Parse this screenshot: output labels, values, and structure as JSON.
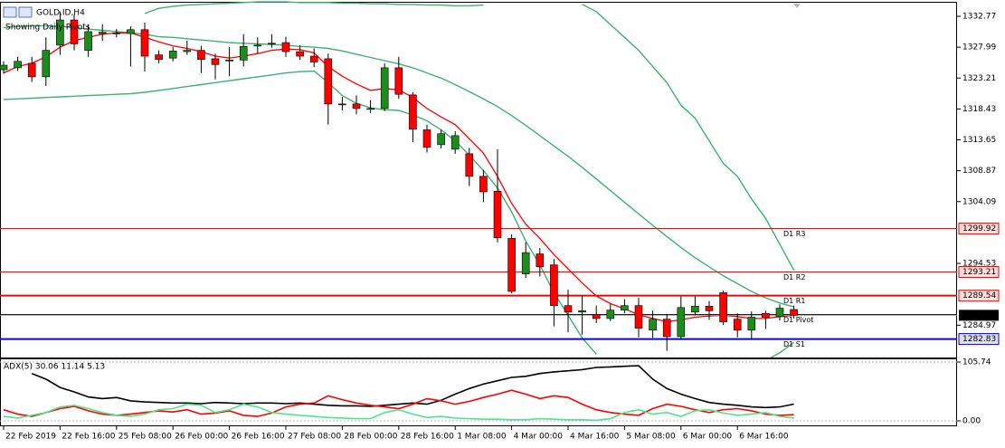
{
  "chart_data": [
    {
      "type": "candlestick",
      "title": "GOLD.ID,H4",
      "subtitle": "Showing Daily Pivots",
      "categories": [
        "22 Feb 2019",
        null,
        null,
        null,
        "22 Feb 16:00",
        null,
        null,
        null,
        "25 Feb 08:00",
        null,
        null,
        null,
        "26 Feb 00:00",
        null,
        null,
        null,
        "26 Feb 16:00",
        null,
        null,
        null,
        "27 Feb 08:00",
        null,
        null,
        null,
        "28 Feb 00:00",
        null,
        null,
        null,
        "28 Feb 16:00",
        null,
        null,
        null,
        "1 Mar 08:00",
        null,
        null,
        null,
        "4 Mar 00:00",
        null,
        null,
        null,
        "4 Mar 16:00",
        null,
        null,
        null,
        "5 Mar 08:00",
        null,
        null,
        null,
        "6 Mar 00:00",
        null,
        null,
        null,
        "6 Mar 16:00",
        null,
        null,
        null,
        null
      ],
      "open": [
        1324.5,
        1324.8,
        1325.5,
        1323.4,
        1328.3,
        1332.2,
        1327.5,
        1330.1,
        1330.2,
        1330.1,
        1330.7,
        1326.8,
        1326.3,
        1327.3,
        1327.5,
        1326.2,
        1325.9,
        1326.0,
        1328.2,
        1328.5,
        1328.7,
        1327.3,
        1326.6,
        1326.2,
        1319.2,
        1319.2,
        1318.4,
        1318.5,
        1324.8,
        1320.6,
        1315.2,
        1312.9,
        1312.2,
        1311.5,
        1308.0,
        1305.7,
        1298.4,
        1292.9,
        1296.0,
        1294.3,
        1288.0,
        1287.0,
        1286.6,
        1286.0,
        1287.3,
        1288.0,
        1284.2,
        1285.9,
        1283.2,
        1287.0,
        1287.9,
        1290.0,
        1285.9,
        1284.2,
        1286.8,
        1286.3,
        1287.4
      ],
      "high": [
        1325.8,
        1326.5,
        1326.5,
        1329.5,
        1333.5,
        1333.0,
        1331.5,
        1331.5,
        1330.8,
        1331.2,
        1331.8,
        1327.5,
        1328.0,
        1329.0,
        1328.2,
        1327.0,
        1328.0,
        1330.0,
        1329.5,
        1330.0,
        1329.6,
        1328.3,
        1327.8,
        1327.0,
        1320.3,
        1320.5,
        1319.8,
        1325.5,
        1326.5,
        1321.0,
        1316.0,
        1315.2,
        1315.0,
        1312.4,
        1309.0,
        1312.2,
        1299.0,
        1297.8,
        1296.9,
        1295.2,
        1290.5,
        1289.6,
        1288.0,
        1288.2,
        1289.0,
        1289.2,
        1287.2,
        1286.7,
        1289.4,
        1289.4,
        1288.7,
        1290.3,
        1286.8,
        1287.1,
        1287.2,
        1288.2,
        1288.0
      ],
      "low": [
        1323.9,
        1324.3,
        1322.6,
        1322.0,
        1326.8,
        1327.5,
        1326.5,
        1329.0,
        1329.5,
        1325.0,
        1324.2,
        1325.5,
        1325.8,
        1326.8,
        1324.0,
        1323.0,
        1323.5,
        1325.0,
        1327.0,
        1327.9,
        1326.5,
        1326.0,
        1324.9,
        1316.0,
        1318.2,
        1317.6,
        1317.8,
        1318.1,
        1320.0,
        1313.3,
        1311.7,
        1312.3,
        1311.5,
        1306.5,
        1304.0,
        1297.8,
        1289.9,
        1292.3,
        1292.5,
        1284.8,
        1283.9,
        1283.5,
        1285.3,
        1285.6,
        1286.8,
        1283.1,
        1283.0,
        1281.0,
        1282.7,
        1286.5,
        1285.8,
        1285.0,
        1283.1,
        1282.8,
        1284.4,
        1285.7,
        1286.0
      ],
      "close": [
        1325.2,
        1325.8,
        1323.4,
        1327.5,
        1332.2,
        1328.5,
        1330.4,
        1330.3,
        1330.1,
        1330.7,
        1326.6,
        1326.1,
        1327.4,
        1327.5,
        1326.1,
        1325.3,
        1326.0,
        1328.1,
        1328.3,
        1328.6,
        1327.3,
        1326.6,
        1325.7,
        1319.2,
        1319.1,
        1318.5,
        1318.5,
        1324.8,
        1320.7,
        1315.3,
        1312.5,
        1314.6,
        1314.3,
        1308.0,
        1305.6,
        1298.5,
        1290.2,
        1296.2,
        1294.0,
        1288.0,
        1287.0,
        1287.2,
        1286.0,
        1287.3,
        1288.0,
        1284.5,
        1285.9,
        1283.2,
        1287.7,
        1287.9,
        1287.2,
        1285.5,
        1284.2,
        1286.2,
        1286.2,
        1287.6,
        1286.5
      ],
      "up_color": "#1c8c1c",
      "down_color": "#ff0000",
      "overlays": [
        {
          "color": "#3cb371",
          "values": [
            null,
            null,
            null,
            null,
            null,
            null,
            null,
            null,
            null,
            null,
            1333.2,
            1334.0,
            1334.3,
            1334.5,
            1334.6,
            1334.7,
            1334.8,
            1334.9,
            1335.0,
            1335.0,
            1335.0,
            1334.9,
            1334.9,
            1334.9,
            1334.8,
            1334.8,
            1334.7,
            1334.7,
            1334.6,
            1334.6,
            1334.5,
            1334.5,
            1334.4,
            1334.4,
            1334.5,
            null,
            null,
            null,
            null,
            null,
            null,
            1334.6,
            1333.5,
            1331.5,
            1329.5,
            1327.5,
            1325.0,
            1322.5,
            1319.0,
            1317.0,
            1313.5,
            1310.0,
            1308.0,
            1304.5,
            1301.5,
            1297.5,
            1293.5
          ]
        },
        {
          "color": "#3cb371",
          "values": [
            1331.0,
            1331.2,
            1331.3,
            1331.3,
            1331.2,
            1331.0,
            1330.8,
            1330.6,
            1330.4,
            1330.2,
            1330.0,
            1329.6,
            1329.5,
            1329.3,
            1329.1,
            1328.9,
            1328.7,
            1328.6,
            1328.5,
            1328.4,
            1328.3,
            1328.1,
            1328.0,
            1327.8,
            1327.4,
            1326.9,
            1326.4,
            1325.9,
            1325.4,
            1324.8,
            1324.0,
            1323.2,
            1322.2,
            1321.1,
            1320.0,
            1318.8,
            1317.4,
            1315.9,
            1314.3,
            1312.7,
            1311.1,
            1309.4,
            1307.6,
            1305.8,
            1304.0,
            1302.2,
            1300.4,
            1298.7,
            1297.0,
            1295.4,
            1294.0,
            1292.6,
            1291.4,
            1290.2,
            1289.2,
            1288.4,
            1287.8
          ]
        },
        {
          "color": "#3cb371",
          "values": [
            1319.9,
            1320.0,
            1320.1,
            1320.2,
            1320.3,
            1320.4,
            1320.5,
            1320.6,
            1320.7,
            1320.8,
            1321.0,
            1321.3,
            1321.6,
            1321.9,
            1322.2,
            1322.5,
            1322.8,
            1323.1,
            1323.4,
            1323.7,
            1324.0,
            1324.2,
            1324.3,
            1322.5,
            1320.5,
            1319.3,
            1318.6,
            1318.3,
            1318.2,
            1317.5,
            1316.6,
            1315.2,
            1313.5,
            1311.3,
            1308.9,
            1306.2,
            1302.5,
            1298.0,
            1294.3,
            1290.0,
            1286.5,
            1283.0,
            1280.5,
            null,
            null,
            null,
            null,
            null,
            null,
            null,
            null,
            null,
            null,
            null,
            1279.5,
            1280.7,
            1282.3
          ]
        },
        {
          "color": "#ff0000",
          "values": [
            1324.0,
            1325.0,
            1325.5,
            1326.5,
            1328.0,
            1329.0,
            1329.5,
            1330.0,
            1330.2,
            1330.2,
            1329.5,
            1328.8,
            1328.2,
            1327.8,
            1327.3,
            1326.6,
            1326.3,
            1326.6,
            1327.0,
            1327.5,
            1327.7,
            1327.6,
            1327.1,
            1325.0,
            1323.5,
            1322.3,
            1321.3,
            1321.6,
            1321.4,
            1320.2,
            1318.5,
            1317.2,
            1316.0,
            1313.8,
            1311.6,
            1308.0,
            1303.8,
            1300.6,
            1298.4,
            1295.9,
            1293.7,
            1291.5,
            1289.5,
            1288.3,
            1287.5,
            1286.6,
            1286.0,
            1285.5,
            1285.8,
            1286.2,
            1286.4,
            1286.5,
            1286.3,
            1286.0,
            1286.0,
            1286.3,
            1286.5
          ]
        }
      ],
      "levels": [
        {
          "name": "D1 R3",
          "value": 1299.92,
          "color": "#ff0000",
          "width": 1,
          "price_label": true
        },
        {
          "name": "D1 R2",
          "value": 1293.21,
          "color": "#ff0000",
          "width": 1,
          "price_label": true
        },
        {
          "name": "D1 R1",
          "value": 1289.54,
          "color": "#ff0000",
          "width": 2,
          "price_label": true
        },
        {
          "name": "D1 Pivot",
          "value": 1286.6,
          "color": "#000000",
          "width": 1,
          "price_label": false
        },
        {
          "name": "D1 S1",
          "value": 1282.83,
          "color": "#0000ff",
          "width": 2,
          "price_label": true
        }
      ],
      "bid": {
        "value": 1286.5,
        "label": "1286.50"
      },
      "ylim": [
        1279.97,
        1335.29
      ],
      "yticks": [
        1332.77,
        1327.99,
        1323.21,
        1318.43,
        1313.65,
        1308.87,
        1304.09,
        1294.53,
        1284.97
      ]
    },
    {
      "type": "line",
      "label": "ADX(5) 30.06 11.14 5.13",
      "ylim": [
        -8.1,
        110.6
      ],
      "yticks": [
        105.74,
        {
          "value": 0,
          "label": "0.00"
        }
      ],
      "series": [
        {
          "color": "#000000",
          "values": [
            null,
            null,
            85,
            75,
            60,
            52,
            43,
            40,
            42,
            36,
            34,
            33,
            32,
            32,
            31,
            33,
            32,
            31,
            32,
            32,
            31,
            32,
            30,
            28,
            27,
            27,
            26,
            28,
            30,
            32,
            30,
            37,
            48,
            58,
            66,
            72,
            78,
            80,
            85,
            88,
            90,
            92,
            96,
            97,
            98,
            99,
            75,
            58,
            48,
            40,
            33,
            30,
            28,
            25,
            24,
            25,
            30.06
          ]
        },
        {
          "color": "#ff0000",
          "values": [
            20,
            12,
            8,
            15,
            22,
            26,
            18,
            12,
            10,
            12,
            15,
            18,
            16,
            20,
            12,
            14,
            18,
            10,
            8,
            14,
            25,
            30,
            32,
            45,
            38,
            32,
            28,
            25,
            22,
            30,
            40,
            36,
            30,
            35,
            42,
            48,
            55,
            48,
            40,
            45,
            42,
            30,
            20,
            15,
            12,
            10,
            22,
            30,
            26,
            20,
            15,
            20,
            22,
            18,
            12,
            10,
            11.14
          ]
        },
        {
          "color": "#4de68c",
          "values": [
            8,
            5,
            10,
            15,
            25,
            28,
            22,
            15,
            10,
            8,
            12,
            20,
            22,
            30,
            28,
            15,
            20,
            30,
            25,
            15,
            12,
            10,
            8,
            6,
            5,
            4,
            4,
            15,
            20,
            12,
            6,
            8,
            5,
            4,
            3,
            3,
            2,
            2,
            4,
            3,
            2,
            2,
            1,
            4,
            15,
            20,
            12,
            15,
            8,
            18,
            20,
            14,
            10,
            12,
            15,
            8,
            5.13
          ]
        }
      ]
    }
  ]
}
